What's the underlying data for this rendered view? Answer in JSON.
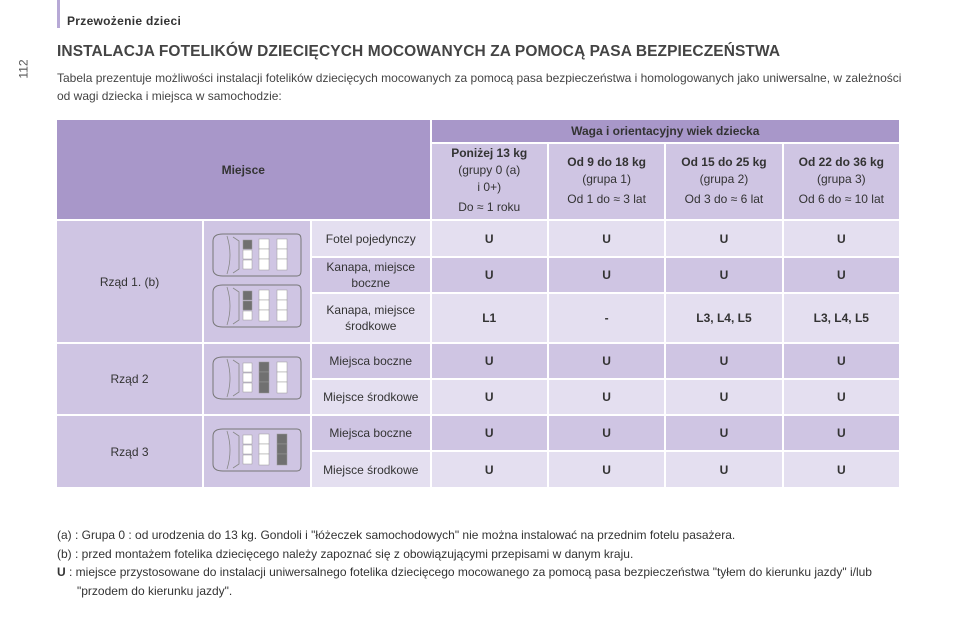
{
  "header": {
    "section": "Przewożenie dzieci",
    "page_number": "112"
  },
  "title": "INSTALACJA FOTELIKÓW DZIECIĘCYCH MOCOWANYCH ZA POMOCĄ PASA BEZPIECZEŃSTWA",
  "intro": "Tabela prezentuje możliwości instalacji fotelików dziecięcych mocowanych za pomocą pasa bezpieczeństwa i homologowanych jako uniwersalne, w zależności od wagi dziecka i miejsca w samochodzie:",
  "table": {
    "place_header": "Miejsce",
    "weight_header": "Waga i orientacyjny wiek dziecka",
    "groups": [
      {
        "title": "Poniżej 13 kg",
        "group": "(grupy 0 (a)",
        "group2": "i 0+)",
        "age": "Do ≈ 1 roku"
      },
      {
        "title": "Od 9 do 18 kg",
        "group": "(grupa 1)",
        "group2": "",
        "age": "Od 1 do ≈ 3 lat"
      },
      {
        "title": "Od 15 do 25 kg",
        "group": "(grupa 2)",
        "group2": "",
        "age": "Od 3 do ≈ 6 lat"
      },
      {
        "title": "Od 22 do 36 kg",
        "group": "(grupa 3)",
        "group2": "",
        "age": "Od 6 do ≈ 10 lat"
      }
    ],
    "rows": [
      {
        "label": "Rząd 1. (b)",
        "seats": [
          {
            "name": "Fotel pojedynczy",
            "values": [
              "U",
              "U",
              "U",
              "U"
            ]
          },
          {
            "name": "Kanapa, miejsce boczne",
            "values": [
              "U",
              "U",
              "U",
              "U"
            ]
          },
          {
            "name": "Kanapa, miejsce środkowe",
            "values": [
              "L1",
              "-",
              "L3, L4, L5",
              "L3, L4, L5"
            ]
          }
        ]
      },
      {
        "label": "Rząd 2",
        "seats": [
          {
            "name": "Miejsca boczne",
            "values": [
              "U",
              "U",
              "U",
              "U"
            ]
          },
          {
            "name": "Miejsce środkowe",
            "values": [
              "U",
              "U",
              "U",
              "U"
            ]
          }
        ]
      },
      {
        "label": "Rząd 3",
        "seats": [
          {
            "name": "Miejsca boczne",
            "values": [
              "U",
              "U",
              "U",
              "U"
            ]
          },
          {
            "name": "Miejsce środkowe",
            "values": [
              "U",
              "U",
              "U",
              "U"
            ]
          }
        ]
      }
    ]
  },
  "footnotes": [
    {
      "key": "(a)",
      "text": ": Grupa 0 : od urodzenia do 13 kg. Gondoli i \"łóżeczek samochodowych\" nie można instalować na przednim fotelu pasażera."
    },
    {
      "key": "(b)",
      "text": ": przed montażem fotelika dziecięcego należy zapoznać się z obowiązującymi przepisami w danym kraju."
    },
    {
      "key": "U",
      "text": ": miejsce przystosowane do instalacji uniwersalnego fotelika dziecięcego mocowanego za pomocą pasa bezpieczeństwa \"tyłem do kierunku jazdy\" i/lub \"przodem do kierunku jazdy\"."
    }
  ],
  "colors": {
    "header": "#a897c9",
    "medium": "#cfc5e3",
    "light": "#e4dff0",
    "highlight_seat": "#707070"
  }
}
